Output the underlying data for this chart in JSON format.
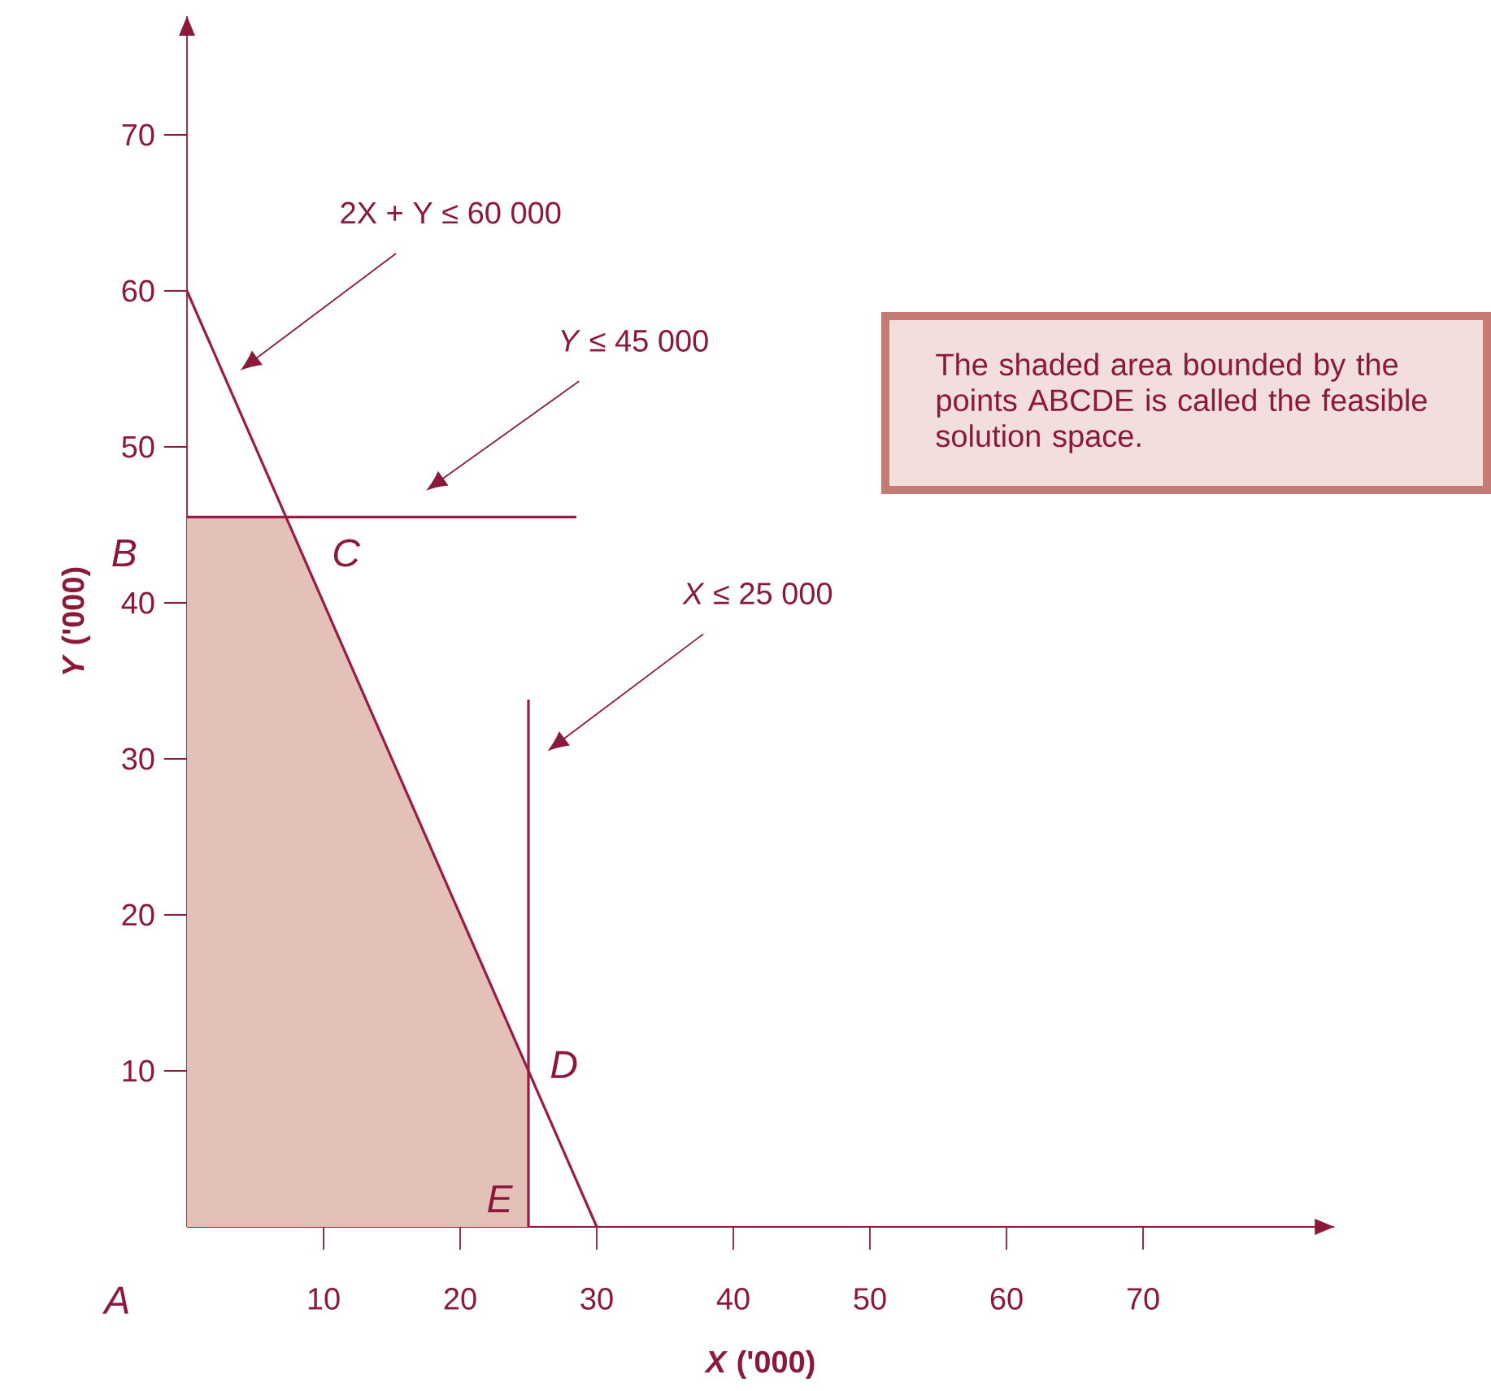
{
  "chart_data": {
    "type": "line",
    "xlabel": "*X* ('000)",
    "ylabel": "*Y* ('000)",
    "xlim": [
      0,
      84
    ],
    "ylim": [
      0,
      77.6
    ],
    "xticks": [
      10,
      20,
      30,
      40,
      50,
      60,
      70
    ],
    "yticks": [
      10,
      20,
      30,
      40,
      50,
      60,
      70
    ],
    "series": [
      {
        "type": "area",
        "color": "#e3c1b9",
        "x": [
          0,
          0,
          7.25,
          25,
          25
        ],
        "values": [
          0,
          45.5,
          45.5,
          10,
          0
        ]
      },
      {
        "color": "#9b1b43",
        "x": [
          0,
          30
        ],
        "values": [
          60,
          0
        ]
      },
      {
        "color": "#9b1b43",
        "x": [
          0,
          28.5
        ],
        "values": [
          45.5,
          45.5
        ]
      },
      {
        "color": "#9b1b43",
        "x": [
          25,
          25
        ],
        "values": [
          0,
          33.8
        ]
      }
    ],
    "annotations": [
      "2X + Y ≤ 60 000",
      "*Y* ≤ 45 000",
      "*X* ≤ 25 000",
      {
        "text": "*A*",
        "x": 0,
        "y": 0
      },
      {
        "text": "*B*",
        "x": 0,
        "y": 45.5
      },
      {
        "text": "*C*",
        "x": 7.25,
        "y": 45.5
      },
      {
        "text": "*D*",
        "x": 25,
        "y": 10
      },
      {
        "text": "*E*",
        "x": 25,
        "y": 0
      },
      "The shaded area bounded by the points ABCDE is called the feasible solution space."
    ]
  }
}
